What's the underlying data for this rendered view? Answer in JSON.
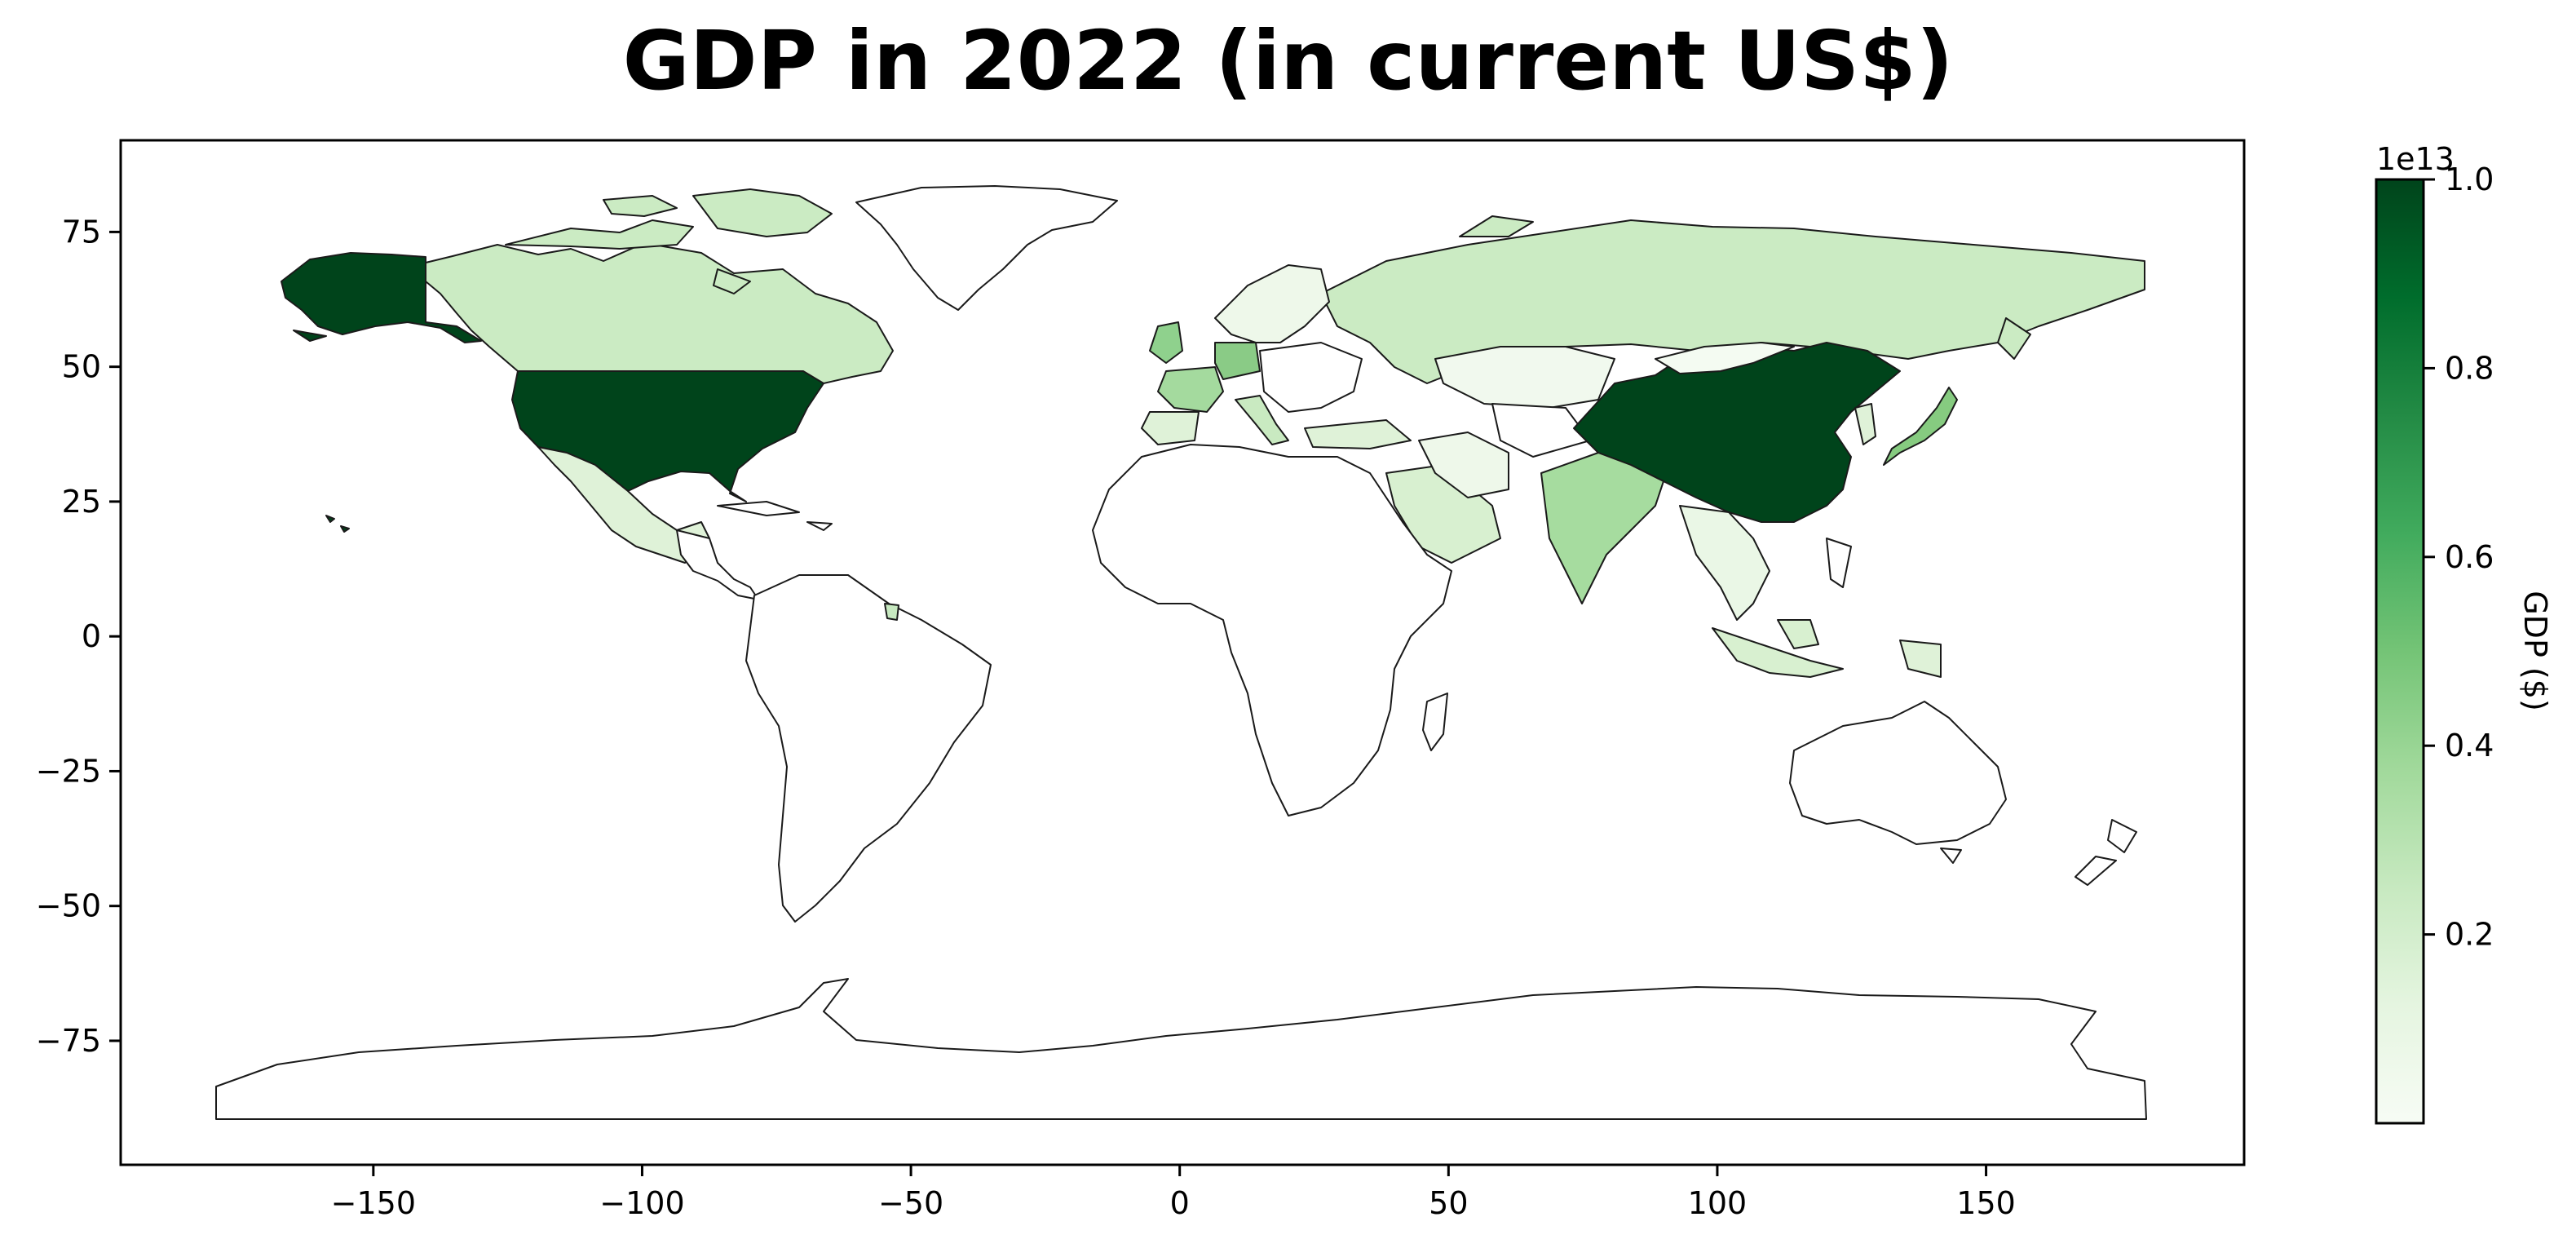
{
  "title": "GDP in 2022 (in current US$)",
  "chart_data": {
    "type": "choropleth",
    "title": "GDP in 2022 (in current US$)",
    "x_ticks": [
      -150,
      -100,
      -50,
      0,
      50,
      100,
      150
    ],
    "x_tick_labels": [
      "−150",
      "−100",
      "−50",
      "0",
      "50",
      "100",
      "150"
    ],
    "y_ticks": [
      75,
      50,
      25,
      0,
      -25,
      -50,
      -75
    ],
    "y_tick_labels": [
      "75",
      "50",
      "25",
      "0",
      "−25",
      "−50",
      "−75"
    ],
    "xlim": [
      -197,
      198
    ],
    "ylim": [
      -98,
      92
    ],
    "colorbar": {
      "label": "GDP ($)",
      "multiplier": "1e13",
      "range": [
        0,
        1.0
      ],
      "ticks": [
        0.2,
        0.4,
        0.6,
        0.8,
        1.0
      ],
      "tick_labels": [
        "0.2",
        "0.4",
        "0.6",
        "0.8",
        "1.0"
      ],
      "colormap": "Greens",
      "colors": [
        "#f7fcf5",
        "#e5f5e0",
        "#c7e9c0",
        "#a1d99b",
        "#74c476",
        "#41ab5d",
        "#238b45",
        "#006d2c",
        "#00441b"
      ]
    },
    "colored_regions": [
      {
        "name": "United States",
        "value_1e13": 1.0
      },
      {
        "name": "China",
        "value_1e13": 1.0
      },
      {
        "name": "Japan",
        "value_1e13": 0.42
      },
      {
        "name": "Germany",
        "value_1e13": 0.41
      },
      {
        "name": "India",
        "value_1e13": 0.34
      },
      {
        "name": "United Kingdom",
        "value_1e13": 0.31
      },
      {
        "name": "France",
        "value_1e13": 0.28
      },
      {
        "name": "Russia",
        "value_1e13": 0.22
      },
      {
        "name": "Canada",
        "value_1e13": 0.21
      },
      {
        "name": "Italy",
        "value_1e13": 0.2
      },
      {
        "name": "Brazil",
        "value_1e13": 0
      },
      {
        "name": "Australia",
        "value_1e13": 0
      },
      {
        "name": "South Korea",
        "value_1e13": 0.17
      },
      {
        "name": "Mexico",
        "value_1e13": 0.14
      },
      {
        "name": "Spain",
        "value_1e13": 0.14
      },
      {
        "name": "Indonesia",
        "value_1e13": 0.13
      },
      {
        "name": "Saudi Arabia",
        "value_1e13": 0.11
      },
      {
        "name": "Turkey",
        "value_1e13": 0.09
      },
      {
        "name": "Iran",
        "value_1e13": 0.04
      },
      {
        "name": "Kazakhstan",
        "value_1e13": 0.02
      }
    ]
  }
}
